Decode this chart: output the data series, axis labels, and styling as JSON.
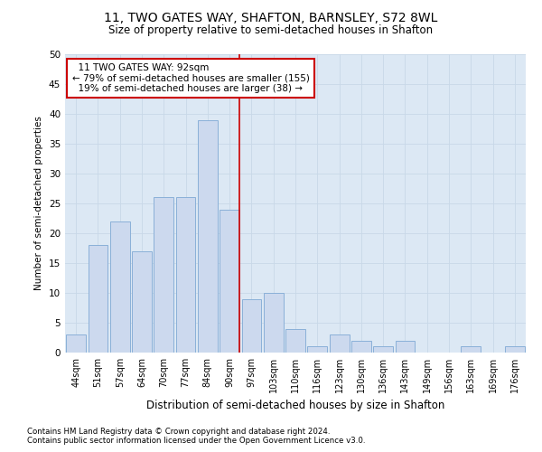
{
  "title": "11, TWO GATES WAY, SHAFTON, BARNSLEY, S72 8WL",
  "subtitle": "Size of property relative to semi-detached houses in Shafton",
  "xlabel": "Distribution of semi-detached houses by size in Shafton",
  "ylabel": "Number of semi-detached properties",
  "categories": [
    "44sqm",
    "51sqm",
    "57sqm",
    "64sqm",
    "70sqm",
    "77sqm",
    "84sqm",
    "90sqm",
    "97sqm",
    "103sqm",
    "110sqm",
    "116sqm",
    "123sqm",
    "130sqm",
    "136sqm",
    "143sqm",
    "149sqm",
    "156sqm",
    "163sqm",
    "169sqm",
    "176sqm"
  ],
  "values": [
    3,
    18,
    22,
    17,
    26,
    26,
    39,
    24,
    9,
    10,
    4,
    1,
    3,
    2,
    1,
    2,
    0,
    0,
    1,
    0,
    1
  ],
  "bar_color": "#ccd9ee",
  "bar_edge_color": "#8ab0d8",
  "vline_color": "#cc0000",
  "annotation_box_color": "#ffffff",
  "annotation_box_edge": "#cc0000",
  "grid_color": "#c8d8e8",
  "background_color": "#dce8f4",
  "ylim": [
    0,
    50
  ],
  "yticks": [
    0,
    5,
    10,
    15,
    20,
    25,
    30,
    35,
    40,
    45,
    50
  ],
  "marker_label": "11 TWO GATES WAY: 92sqm",
  "smaller_pct": "79%",
  "smaller_count": 155,
  "larger_pct": "19%",
  "larger_count": 38,
  "vline_index": 7,
  "footnote1": "Contains HM Land Registry data © Crown copyright and database right 2024.",
  "footnote2": "Contains public sector information licensed under the Open Government Licence v3.0."
}
